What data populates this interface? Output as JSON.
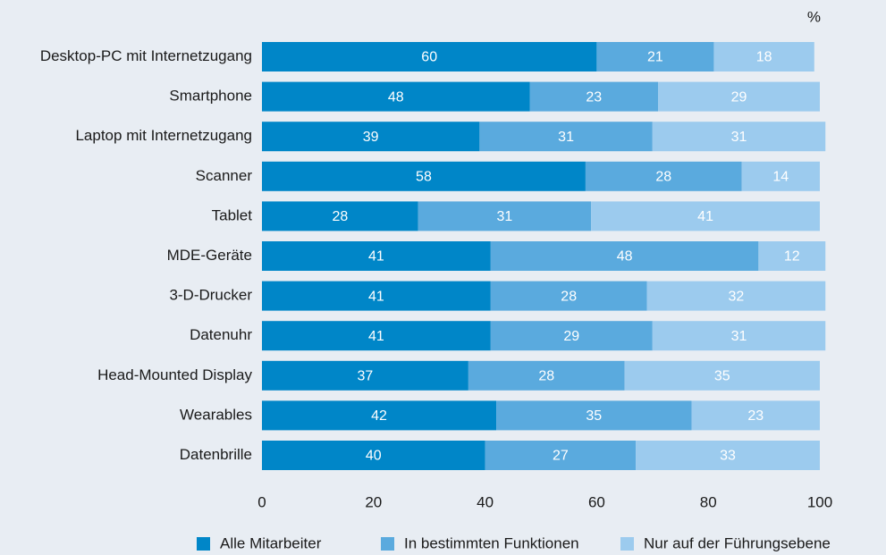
{
  "chart_data": {
    "type": "stacked-bar-horizontal",
    "unit": "%",
    "categories": [
      "Desktop-PC mit Internetzugang",
      "Smartphone",
      "Laptop mit Internetzugang",
      "Scanner",
      "Tablet",
      "MDE-Geräte",
      "3-D-Drucker",
      "Datenuhr",
      "Head-Mounted Display",
      "Wearables",
      "Datenbrille"
    ],
    "series": [
      {
        "name": "Alle Mitarbeiter",
        "color": "#0086c8",
        "values": [
          60,
          48,
          39,
          58,
          28,
          41,
          41,
          41,
          37,
          42,
          40
        ]
      },
      {
        "name": "In bestimmten Funktionen",
        "color": "#5aaade",
        "values": [
          21,
          23,
          31,
          28,
          31,
          48,
          28,
          29,
          28,
          35,
          27
        ]
      },
      {
        "name": "Nur auf der Führungsebene",
        "color": "#9ccbee",
        "values": [
          18,
          29,
          31,
          14,
          41,
          12,
          32,
          31,
          35,
          23,
          33
        ]
      }
    ],
    "xlim": [
      0,
      100
    ],
    "xticks": [
      0,
      20,
      40,
      60,
      80,
      100
    ],
    "grid": false,
    "legend": "bottom"
  }
}
